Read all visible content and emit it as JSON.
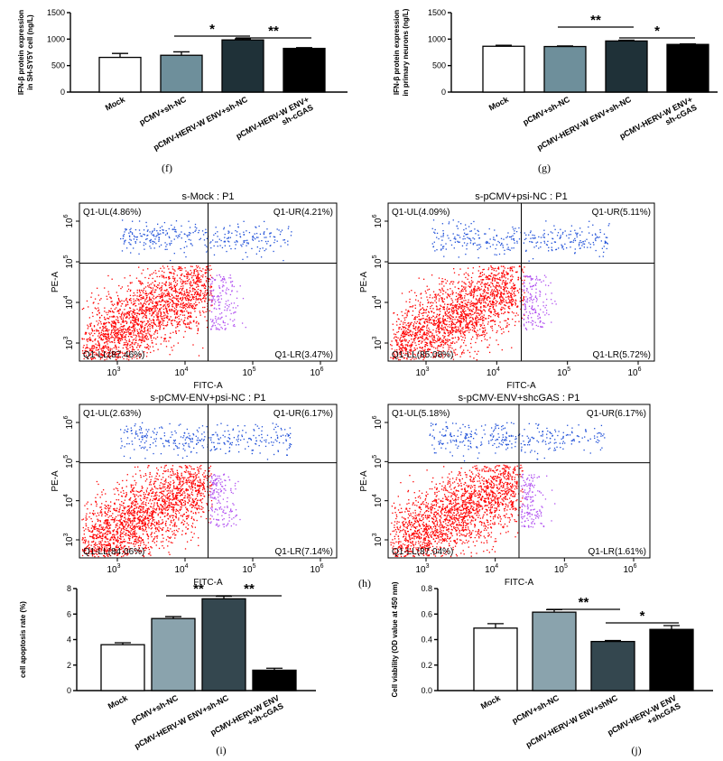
{
  "chart_data": [
    {
      "type": "bar",
      "panel_label": "(f)",
      "ylabel": "IFN-β  protein expression in SH-SY5Y cell (ng/L)",
      "ylabel_lines": [
        "IFN-β  protein expression",
        "in SH-SY5Y cell (ng/L)"
      ],
      "ylim": [
        0,
        1500
      ],
      "yticks": [
        "0",
        "500",
        "1000",
        "1500"
      ],
      "categories": [
        "Mock",
        "pCMV+sh-NC",
        "pCMV-HERV-W ENV+sh-NC",
        "pCMV-HERV-W ENV+ sh-cGAS"
      ],
      "category_lines": [
        [
          "Mock"
        ],
        [
          "pCMV+sh-NC"
        ],
        [
          "pCMV-HERV-W ENV+sh-NC"
        ],
        [
          "pCMV-HERV-W ENV+",
          "sh-cGAS"
        ]
      ],
      "values": [
        655,
        695,
        985,
        825
      ],
      "errors": [
        75,
        65,
        20,
        15
      ],
      "colors": [
        "#ffffff",
        "#6e8f9b",
        "#1f3138",
        "#000000"
      ],
      "significance": [
        {
          "from": 1,
          "to": 2,
          "label": "*"
        },
        {
          "from": 2,
          "to": 3,
          "label": "**"
        }
      ]
    },
    {
      "type": "bar",
      "panel_label": "(g)",
      "ylabel": "IFN-β  protein expression in primary neurons (ng/L)",
      "ylabel_lines": [
        "IFN-β  protein expression",
        "in primary neurons (ng/L)"
      ],
      "ylim": [
        0,
        1500
      ],
      "yticks": [
        "0",
        "500",
        "1000",
        "1500"
      ],
      "categories": [
        "Mock",
        "pCMV+sh-NC",
        "pCMV-HERV-W ENV+sh-NC",
        "pCMV-HERV-W ENV+ sh-cGAS"
      ],
      "category_lines": [
        [
          "Mock"
        ],
        [
          "pCMV+sh-NC"
        ],
        [
          "pCMV-HERV-W ENV+sh-NC"
        ],
        [
          "pCMV-HERV-W ENV+",
          "sh-cGAS"
        ]
      ],
      "values": [
        865,
        860,
        965,
        900
      ],
      "errors": [
        18,
        10,
        15,
        10
      ],
      "colors": [
        "#ffffff",
        "#6e8f9b",
        "#1f3138",
        "#000000"
      ],
      "significance": [
        {
          "from": 1,
          "to": 2,
          "label": "**"
        },
        {
          "from": 2,
          "to": 3,
          "label": "*"
        }
      ]
    },
    {
      "type": "scatter",
      "panel_label": "(h)",
      "plots": [
        {
          "title": "s-Mock : P1",
          "UL": "Q1-UL(4.86%)",
          "UR": "Q1-UR(4.21%)",
          "LL": "Q1-LL(87.46%)",
          "LR": "Q1-LR(3.47%)"
        },
        {
          "title": "s-pCMV+psi-NC : P1",
          "UL": "Q1-UL(4.09%)",
          "UR": "Q1-UR(5.11%)",
          "LL": "Q1-LL(85.08%)",
          "LR": "Q1-LR(5.72%)"
        },
        {
          "title": "s-pCMV-ENV+psi-NC : P1",
          "UL": "Q1-UL(2.63%)",
          "UR": "Q1-UR(6.17%)",
          "LL": "Q1-LL(84.06%)",
          "LR": "Q1-LR(7.14%)"
        },
        {
          "title": "s-pCMV-ENV+shcGAS : P1",
          "UL": "Q1-UL(5.18%)",
          "UR": "Q1-UR(6.17%)",
          "LL": "Q1-LL(87.04%)",
          "LR": "Q1-LR(1.61%)"
        }
      ],
      "xlabel": "FITC-A",
      "ylabel": "PE-A",
      "ticks": [
        "10",
        "10",
        "10",
        "10"
      ],
      "tick_exponents": [
        "3",
        "4",
        "5",
        "6"
      ],
      "colors": {
        "LL": "#ff0000",
        "UL": "#1e4fd8",
        "UR": "#1e4fd8",
        "LR": "#b04ff0"
      }
    },
    {
      "type": "bar",
      "panel_label": "(i)",
      "ylabel": "cell apoptosis rate (%)",
      "ylabel_lines": [
        "cell apoptosis rate (%)"
      ],
      "ylim": [
        0,
        8
      ],
      "yticks": [
        "0",
        "2",
        "4",
        "6",
        "8"
      ],
      "categories": [
        "Mock",
        "pCMV+sh-NC",
        "pCMV-HERV-W ENV+sh-NC",
        "pCMV-HERV-W ENV+sh-cGAS"
      ],
      "category_lines": [
        [
          "Mock"
        ],
        [
          "pCMV+sh-NC"
        ],
        [
          "pCMV-HERV-W ENV+sh-NC"
        ],
        [
          "pCMV-HERV-W ENV",
          "+sh-cGAS"
        ]
      ],
      "values": [
        3.6,
        5.65,
        7.2,
        1.6
      ],
      "errors": [
        0.15,
        0.15,
        0.2,
        0.15
      ],
      "colors": [
        "#ffffff",
        "#8aa3ad",
        "#34474f",
        "#000000"
      ],
      "significance": [
        {
          "from": 1,
          "to": 2,
          "label": "**"
        },
        {
          "from": 2,
          "to": 3,
          "label": "**"
        }
      ]
    },
    {
      "type": "bar",
      "panel_label": "(j)",
      "ylabel": "Cell viability (OD value at 450 nm)",
      "ylabel_lines": [
        "Cell viability (OD value at 450 nm)"
      ],
      "ylim": [
        0,
        0.8
      ],
      "yticks": [
        "0.0",
        "0.2",
        "0.4",
        "0.6",
        "0.8"
      ],
      "categories": [
        "Mock",
        "pCMV+sh-NC",
        "pCMV-HERV-W ENV+shNC",
        "pCMV-HERV-W ENV +shcGAS"
      ],
      "category_lines": [
        [
          "Mock"
        ],
        [
          "pCMV+sh-NC"
        ],
        [
          "pCMV-HERV-W ENV+shNC"
        ],
        [
          "pCMV-HERV-W ENV",
          "+shcGAS"
        ]
      ],
      "values": [
        0.49,
        0.615,
        0.385,
        0.48
      ],
      "errors": [
        0.035,
        0.02,
        0.008,
        0.03
      ],
      "colors": [
        "#ffffff",
        "#8aa3ad",
        "#34474f",
        "#000000"
      ],
      "significance": [
        {
          "from": 1,
          "to": 2,
          "label": "**"
        },
        {
          "from": 2,
          "to": 3,
          "label": "*"
        }
      ]
    }
  ]
}
